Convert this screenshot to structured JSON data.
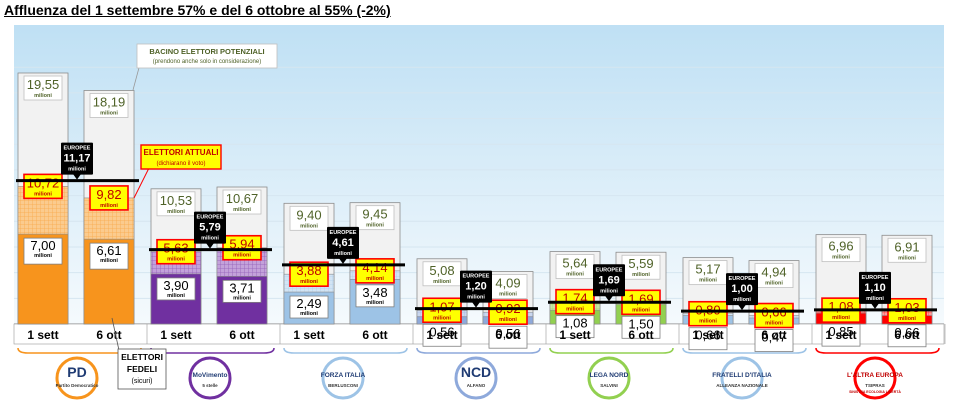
{
  "chart_data": {
    "type": "bar",
    "title": "Affluenza del 1 settembre 57% e del 6 ottobre al 55% (-2%)",
    "subcategories": [
      "1 sett",
      "6 ott"
    ],
    "unit_label": "milioni",
    "layer_names": [
      "ELETTORI FEDELI (sicuri)",
      "ELETTORI ATTUALI (dichiarano il voto)",
      "BACINO ELETTORI POTENZIALI (prendono anche solo in considerazione)",
      "EUROPEE"
    ],
    "ylim": [
      0,
      22
    ],
    "parties": [
      {
        "logo": "PD",
        "logo_sub": "Partito Democratico",
        "color": "#F7941D",
        "hatch": "#FBCB8E",
        "europee": "11,17",
        "values": [
          {
            "fedeli": 7.0,
            "attuali": 10.72,
            "potenziali": 19.55
          },
          {
            "fedeli": 6.61,
            "attuali": 9.82,
            "potenziali": 18.19
          }
        ]
      },
      {
        "logo": "MoVimento",
        "logo_sub": "5 stelle",
        "color": "#7030A0",
        "hatch": "#C3A2DA",
        "europee": "5,79",
        "values": [
          {
            "fedeli": 3.9,
            "attuali": 5.63,
            "potenziali": 10.53
          },
          {
            "fedeli": 3.71,
            "attuali": 5.94,
            "potenziali": 10.67
          }
        ]
      },
      {
        "logo": "FORZA ITALIA",
        "logo_sub": "BERLUSCONI",
        "color": "#9DC3E6",
        "hatch": "#D2E4F4",
        "europee": "4,61",
        "values": [
          {
            "fedeli": 2.49,
            "attuali": 3.88,
            "potenziali": 9.4
          },
          {
            "fedeli": 3.48,
            "attuali": 4.14,
            "potenziali": 9.45
          }
        ]
      },
      {
        "logo": "NCD",
        "logo_sub": "ALFANO",
        "color": "#8EA9DB",
        "hatch": "#C9D6EE",
        "europee": "1,20",
        "values": [
          {
            "fedeli": 0.56,
            "attuali": 1.07,
            "potenziali": 5.08
          },
          {
            "fedeli": 0.56,
            "attuali": 0.92,
            "potenziali": 4.09
          }
        ]
      },
      {
        "logo": "LEGA NORD",
        "logo_sub": "SALVINI",
        "color": "#92D050",
        "hatch": "#C8E6A6",
        "europee": "1,69",
        "values": [
          {
            "fedeli": 1.08,
            "attuali": 1.74,
            "potenziali": 5.64
          },
          {
            "fedeli": 1.5,
            "attuali": 1.69,
            "potenziali": 5.59
          }
        ]
      },
      {
        "logo": "FRATELLI D'ITALIA",
        "logo_sub": "ALLEANZA NAZIONALE",
        "color": "#9DC3E6",
        "hatch": "#D2E4F4",
        "europee": "1,00",
        "values": [
          {
            "fedeli": 0.66,
            "attuali": 0.8,
            "potenziali": 5.17
          },
          {
            "fedeli": 0.47,
            "attuali": 0.66,
            "potenziali": 4.94
          }
        ]
      },
      {
        "logo": "L'ALTRA EUROPA",
        "logo_sub": "TSIPRAS",
        "logo_extra": "SINISTRA ECOLOGIA LIBERTÀ",
        "color": "#FF0000",
        "hatch": "#FF9A9A",
        "europee": "1,10",
        "values": [
          {
            "fedeli": 0.85,
            "attuali": 1.08,
            "potenziali": 6.96
          },
          {
            "fedeli": 0.66,
            "attuali": 1.03,
            "potenziali": 6.91
          }
        ]
      }
    ],
    "callouts": {
      "bacino_title": "BACINO ELETTORI POTENZIALI",
      "bacino_sub": "(prendono anche solo in considerazione)",
      "attuali_title": "ELETTORI ATTUALI",
      "attuali_sub": "(dichiarano il voto)",
      "fedeli_line1": "ELETTORI",
      "fedeli_line2": "FEDELI",
      "fedeli_sub": "(sicuri)",
      "europee_label": "EUROPEE"
    }
  }
}
